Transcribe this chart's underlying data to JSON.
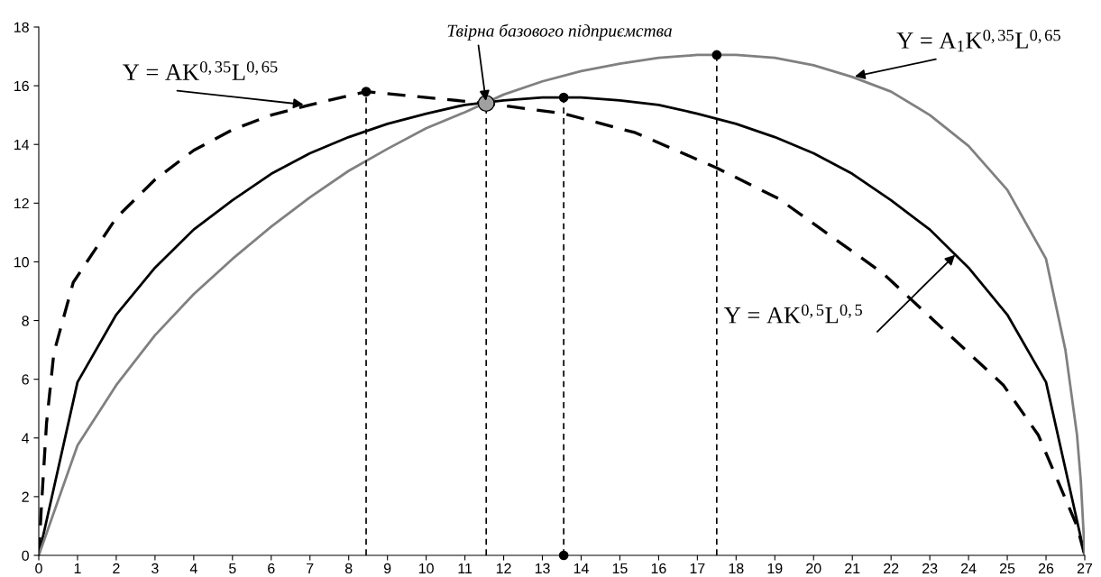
{
  "chart_data": {
    "type": "line",
    "xlim": [
      0,
      27
    ],
    "xticks": [
      0,
      1,
      2,
      3,
      4,
      5,
      6,
      7,
      8,
      9,
      10,
      11,
      12,
      13,
      14,
      15,
      16,
      17,
      18,
      19,
      20,
      21,
      22,
      23,
      24,
      25,
      26,
      27
    ],
    "ylim": [
      0,
      18
    ],
    "yticks": [
      0,
      2,
      4,
      6,
      8,
      10,
      12,
      14,
      16,
      18
    ],
    "grid": false,
    "legend": false,
    "marker": "none",
    "series": [
      {
        "color": "#000000",
        "line_style": "dashed",
        "x": [
          0,
          0.07,
          0.2,
          0.39,
          0.89,
          2,
          3,
          4,
          5,
          6,
          7,
          8.45,
          10,
          11.55,
          13.55,
          15.4,
          17.5,
          19.1,
          21.8,
          24.9,
          25.8,
          26.8,
          27
        ],
        "values": [
          0,
          1.7,
          4.5,
          6.9,
          9.3,
          11.5,
          12.8,
          13.8,
          14.5,
          15.0,
          15.35,
          15.8,
          15.6,
          15.4,
          15.05,
          14.4,
          13.2,
          12.15,
          9.6,
          5.8,
          4.1,
          1.0,
          0
        ]
      },
      {
        "color": "#000000",
        "line_style": "solid",
        "x": [
          0,
          1,
          2,
          3,
          4,
          5,
          6,
          7,
          8,
          9,
          10,
          11,
          12,
          13,
          14,
          15,
          16,
          17,
          18,
          19,
          20,
          21,
          22,
          23,
          24,
          25,
          26,
          27
        ],
        "values": [
          0,
          5.9,
          8.2,
          9.8,
          11.1,
          12.1,
          13.0,
          13.7,
          14.25,
          14.7,
          15.05,
          15.35,
          15.5,
          15.6,
          15.6,
          15.5,
          15.35,
          15.05,
          14.7,
          14.25,
          13.7,
          13.0,
          12.1,
          11.1,
          9.8,
          8.2,
          5.9,
          0
        ]
      },
      {
        "color": "#808080",
        "line_style": "solid",
        "x": [
          0,
          1,
          2,
          3,
          4,
          5,
          6,
          7,
          8,
          9,
          10,
          11,
          12,
          13,
          14,
          15,
          16,
          17,
          18,
          19,
          20,
          21,
          22,
          23,
          24,
          25,
          26,
          26.5,
          26.8,
          26.9,
          27
        ],
        "values": [
          0,
          3.75,
          5.8,
          7.5,
          8.9,
          10.1,
          11.2,
          12.2,
          13.1,
          13.85,
          14.55,
          15.1,
          15.7,
          16.15,
          16.5,
          16.75,
          16.95,
          17.05,
          17.05,
          16.95,
          16.7,
          16.3,
          15.8,
          15.0,
          13.95,
          12.45,
          10.1,
          7.0,
          4.1,
          2.5,
          0
        ]
      },
      {
        "type": "line",
        "color": "#000000",
        "line_style": "dashed",
        "x": [
          8.45,
          8.45
        ],
        "values": [
          0,
          15.8
        ]
      },
      {
        "type": "line",
        "color": "#000000",
        "line_style": "dashed",
        "x": [
          11.55,
          11.55
        ],
        "values": [
          0,
          15.4
        ]
      },
      {
        "type": "line",
        "color": "#000000",
        "line_style": "dashed",
        "x": [
          13.55,
          13.55
        ],
        "values": [
          0,
          15.6
        ]
      },
      {
        "type": "line",
        "color": "#000000",
        "line_style": "dashed",
        "x": [
          17.5,
          17.5
        ],
        "values": [
          0,
          17.05
        ]
      },
      {
        "type": "scatter",
        "color": "#000000",
        "marker": "circle",
        "x": [
          8.45,
          13.55,
          17.5,
          13.55
        ],
        "values": [
          15.8,
          15.6,
          17.05,
          0
        ]
      },
      {
        "type": "scatter",
        "color": "#a0a0a0",
        "marker": "circle",
        "x": [
          11.55
        ],
        "values": [
          15.4
        ]
      }
    ],
    "annotations": [
      {
        "text": "Y = AK$^{0,35}$L$^{0,65}$",
        "x": 6.9,
        "y": 15.35
      },
      {
        "text": "Твірна базового підприємства",
        "x": 11.55,
        "y": 15.4
      },
      {
        "text": "Y = A$_{1}$K$^{0,35}$L$^{0,65}$",
        "x": 21.0,
        "y": 16.3
      },
      {
        "text": "Y = AK$^{0,5}$L$^{0,5}$",
        "x": 23.7,
        "y": 10.3
      }
    ]
  }
}
